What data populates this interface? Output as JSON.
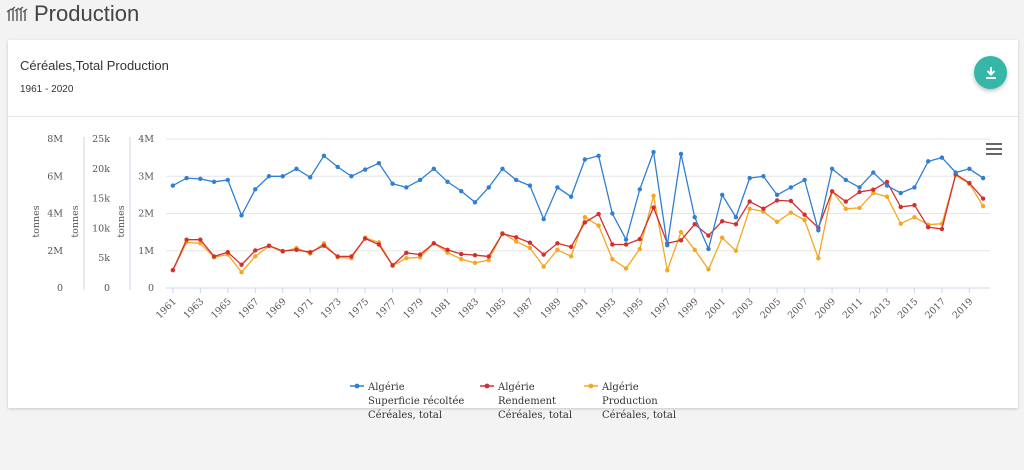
{
  "header": {
    "title": "Production",
    "logo_icon": "wheat-icon"
  },
  "card": {
    "title": "Céréales,Total Production",
    "subtitle": "1961 - 2020",
    "download_icon": "download-icon",
    "menu_icon": "hamburger-menu-icon"
  },
  "chart_data": {
    "type": "line",
    "x_start": 1961,
    "x_tick_labels": [
      "1961",
      "1963",
      "1965",
      "1967",
      "1969",
      "1971",
      "1973",
      "1975",
      "1977",
      "1979",
      "1981",
      "1983",
      "1985",
      "1987",
      "1989",
      "1991",
      "1993",
      "1995",
      "1997",
      "1999",
      "2001",
      "2003",
      "2005",
      "2007",
      "2009",
      "2011",
      "2013",
      "2015",
      "2017",
      "2019"
    ],
    "axes": [
      {
        "ylabel": "tonnes",
        "tick_labels": [
          "0",
          "2M",
          "4M",
          "6M",
          "8M"
        ],
        "ylim": [
          0,
          8000000
        ]
      },
      {
        "ylabel": "tonnes",
        "tick_labels": [
          "0",
          "5k",
          "10k",
          "15k",
          "20k",
          "25k"
        ],
        "ylim": [
          0,
          25000
        ]
      },
      {
        "ylabel": "tonnes",
        "tick_labels": [
          "0",
          "1M",
          "2M",
          "3M",
          "4M"
        ],
        "ylim": [
          0,
          4000000
        ]
      }
    ],
    "series": [
      {
        "name": "Algérie Superficie récoltée Céréales, total",
        "legend_lines": [
          "Algérie",
          "Superficie récoltée",
          "Céréales, total"
        ],
        "color": "#2f7fd3",
        "axis": 2,
        "values": [
          2750000,
          2950000,
          2930000,
          2850000,
          2900000,
          1950000,
          2650000,
          3000000,
          3000000,
          3200000,
          2970000,
          3550000,
          3250000,
          3000000,
          3180000,
          3350000,
          2800000,
          2700000,
          2900000,
          3200000,
          2850000,
          2600000,
          2300000,
          2700000,
          3200000,
          2900000,
          2750000,
          1850000,
          2700000,
          2450000,
          3450000,
          3550000,
          2000000,
          1300000,
          2650000,
          3650000,
          1150000,
          3600000,
          1900000,
          1050000,
          2500000,
          1900000,
          2950000,
          3000000,
          2500000,
          2700000,
          2900000,
          1550000,
          3200000,
          2900000,
          2700000,
          3100000,
          2750000,
          2550000,
          2700000,
          3400000,
          3500000,
          3100000,
          3200000,
          2950000
        ]
      },
      {
        "name": "Algérie Rendement Céréales, total",
        "legend_lines": [
          "Algérie",
          "Rendement",
          "Céréales, total"
        ],
        "color": "#d32f2f",
        "axis": 1,
        "values": [
          3000,
          8100,
          8100,
          5300,
          6000,
          3900,
          6300,
          7100,
          6200,
          6400,
          6000,
          7100,
          5300,
          5300,
          8300,
          7300,
          3800,
          5900,
          5600,
          7500,
          6400,
          5700,
          5500,
          5300,
          9100,
          8500,
          7600,
          5600,
          7500,
          6900,
          11000,
          12400,
          7300,
          7300,
          8200,
          13500,
          7500,
          8000,
          10700,
          8800,
          11200,
          10700,
          14500,
          13300,
          14700,
          14600,
          12300,
          10100,
          16200,
          14500,
          16100,
          16500,
          17800,
          13600,
          13900,
          10200,
          9900,
          19100,
          17600,
          15000
        ]
      },
      {
        "name": "Algérie Production Céréales, total",
        "legend_lines": [
          "Algérie",
          "Production",
          "Céréales, total"
        ],
        "color": "#f5a623",
        "axis": 0,
        "values": [
          950000,
          2450000,
          2400000,
          1650000,
          1800000,
          850000,
          1700000,
          2250000,
          1950000,
          2150000,
          1850000,
          2400000,
          1650000,
          1600000,
          2700000,
          2450000,
          1200000,
          1600000,
          1650000,
          2400000,
          1900000,
          1550000,
          1350000,
          1500000,
          2950000,
          2500000,
          2150000,
          1150000,
          2050000,
          1700000,
          3800000,
          3350000,
          1550000,
          1050000,
          2100000,
          4950000,
          950000,
          3000000,
          2050000,
          1000000,
          2700000,
          2000000,
          4250000,
          4100000,
          3550000,
          4050000,
          3650000,
          1600000,
          5200000,
          4250000,
          4300000,
          5100000,
          4900000,
          3450000,
          3800000,
          3400000,
          3450000,
          6050000,
          5600000,
          4400000
        ]
      }
    ],
    "legend_position": "bottom-center",
    "grid": "horizontal"
  }
}
